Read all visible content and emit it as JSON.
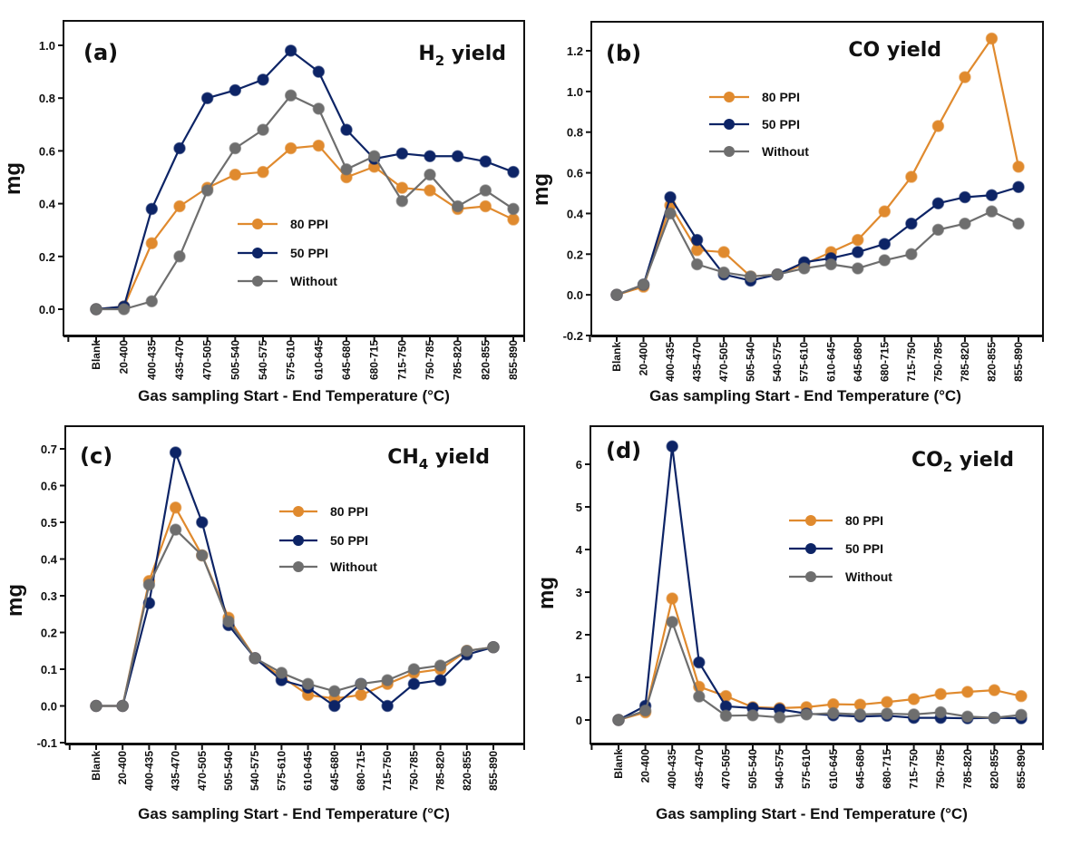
{
  "figure": {
    "xlabel": "Gas sampling Start - End Temperature (°C)",
    "ylabel": "mg"
  },
  "series_style": [
    {
      "name": "80 PPI",
      "color": "#E08A2E"
    },
    {
      "name": "50 PPI",
      "color": "#0D2466"
    },
    {
      "name": "Without",
      "color": "#6E6E6E"
    }
  ],
  "chart_data": [
    {
      "type": "line",
      "panel": "(a)",
      "title": "H2 yield",
      "title_main": "H",
      "title_sub": "2",
      "title_rest": " yield",
      "xlabel": "Gas sampling Start - End Temperature (°C)",
      "ylabel": "mg",
      "ylim": [
        -0.1,
        1.1
      ],
      "yticks": [
        0.0,
        0.2,
        0.4,
        0.6,
        0.8,
        1.0
      ],
      "ytick_labels": [
        "0.0",
        "0.2",
        "0.4",
        "0.6",
        "0.8",
        "1.0"
      ],
      "legend_position": "center",
      "categories": [
        "Blank",
        "20-400",
        "400-435",
        "435-470",
        "470-505",
        "505-540",
        "540-575",
        "575-610",
        "610-645",
        "645-680",
        "680-715",
        "715-750",
        "750-785",
        "785-820",
        "820-855",
        "855-890"
      ],
      "series": [
        {
          "name": "80 PPI",
          "values": [
            0.0,
            0.01,
            0.25,
            0.39,
            0.46,
            0.51,
            0.52,
            0.61,
            0.62,
            0.5,
            0.54,
            0.46,
            0.45,
            0.38,
            0.39,
            0.34
          ]
        },
        {
          "name": "50 PPI",
          "values": [
            0.0,
            0.01,
            0.38,
            0.61,
            0.8,
            0.83,
            0.87,
            0.98,
            0.9,
            0.68,
            0.57,
            0.59,
            0.58,
            0.58,
            0.56,
            0.52
          ]
        },
        {
          "name": "Without",
          "values": [
            0.0,
            0.0,
            0.03,
            0.2,
            0.45,
            0.61,
            0.68,
            0.81,
            0.76,
            0.53,
            0.58,
            0.41,
            0.51,
            0.39,
            0.45,
            0.38
          ]
        }
      ]
    },
    {
      "type": "line",
      "panel": "(b)",
      "title": "CO yield",
      "title_main": "CO yield",
      "title_sub": "",
      "title_rest": "",
      "xlabel": "Gas sampling Start - End Temperature (°C)",
      "ylabel": "mg",
      "ylim": [
        -0.2,
        1.35
      ],
      "yticks": [
        -0.2,
        0.0,
        0.2,
        0.4,
        0.6,
        0.8,
        1.0,
        1.2
      ],
      "ytick_labels": [
        "-0.2",
        "0.0",
        "0.2",
        "0.4",
        "0.6",
        "0.8",
        "1.0",
        "1.2"
      ],
      "legend_position": "top-left",
      "categories": [
        "Blank",
        "20-400",
        "400-435",
        "435-470",
        "470-505",
        "505-540",
        "540-575",
        "575-610",
        "610-645",
        "645-680",
        "680-715",
        "715-750",
        "750-785",
        "785-820",
        "820-855",
        "855-890"
      ],
      "series": [
        {
          "name": "80 PPI",
          "values": [
            0.0,
            0.04,
            0.44,
            0.22,
            0.21,
            0.09,
            0.1,
            0.15,
            0.21,
            0.27,
            0.41,
            0.58,
            0.83,
            1.07,
            1.26,
            0.63
          ]
        },
        {
          "name": "50 PPI",
          "values": [
            0.0,
            0.05,
            0.48,
            0.27,
            0.1,
            0.07,
            0.1,
            0.16,
            0.18,
            0.21,
            0.25,
            0.35,
            0.45,
            0.48,
            0.49,
            0.53
          ]
        },
        {
          "name": "Without",
          "values": [
            0.0,
            0.05,
            0.4,
            0.15,
            0.11,
            0.09,
            0.1,
            0.13,
            0.15,
            0.13,
            0.17,
            0.2,
            0.32,
            0.35,
            0.41,
            0.35
          ]
        }
      ]
    },
    {
      "type": "line",
      "panel": "(c)",
      "title": "CH4 yield",
      "title_main": "CH",
      "title_sub": "4",
      "title_rest": " yield",
      "xlabel": "Gas sampling Start - End Temperature (°C)",
      "ylabel": "mg",
      "ylim": [
        -0.1,
        0.75
      ],
      "yticks": [
        -0.1,
        0.0,
        0.1,
        0.2,
        0.3,
        0.4,
        0.5,
        0.6,
        0.7
      ],
      "ytick_labels": [
        "-0.1",
        "0.0",
        "0.1",
        "0.2",
        "0.3",
        "0.4",
        "0.5",
        "0.6",
        "0.7"
      ],
      "legend_position": "top-right",
      "categories": [
        "Blank",
        "20-400",
        "400-435",
        "435-470",
        "470-505",
        "505-540",
        "540-575",
        "575-610",
        "610-645",
        "645-680",
        "680-715",
        "715-750",
        "750-785",
        "785-820",
        "820-855",
        "855-890"
      ],
      "series": [
        {
          "name": "80 PPI",
          "values": [
            0.0,
            0.0,
            0.34,
            0.54,
            0.41,
            0.24,
            0.13,
            0.08,
            0.03,
            0.02,
            0.03,
            0.06,
            0.09,
            0.1,
            0.15,
            0.16
          ]
        },
        {
          "name": "50 PPI",
          "values": [
            0.0,
            0.0,
            0.28,
            0.69,
            0.5,
            0.22,
            0.13,
            0.07,
            0.05,
            0.0,
            0.06,
            0.0,
            0.06,
            0.07,
            0.14,
            0.16
          ]
        },
        {
          "name": "Without",
          "values": [
            0.0,
            0.0,
            0.33,
            0.48,
            0.41,
            0.23,
            0.13,
            0.09,
            0.06,
            0.04,
            0.06,
            0.07,
            0.1,
            0.11,
            0.15,
            0.16
          ]
        }
      ]
    },
    {
      "type": "line",
      "panel": "(d)",
      "title": "CO2 yield",
      "title_main": "CO",
      "title_sub": "2",
      "title_rest": " yield",
      "xlabel": "Gas sampling Start - End Temperature (°C)",
      "ylabel": "mg",
      "ylim": [
        -0.5,
        6.9
      ],
      "yticks": [
        0,
        1,
        2,
        3,
        4,
        5,
        6
      ],
      "ytick_labels": [
        "0",
        "1",
        "2",
        "3",
        "4",
        "5",
        "6"
      ],
      "legend_position": "top-right",
      "categories": [
        "Blank",
        "20-400",
        "400-435",
        "435-470",
        "470-505",
        "505-540",
        "540-575",
        "575-610",
        "610-645",
        "645-680",
        "680-715",
        "715-750",
        "750-785",
        "785-820",
        "820-855",
        "855-890"
      ],
      "series": [
        {
          "name": "80 PPI",
          "values": [
            0.0,
            0.18,
            2.85,
            0.78,
            0.56,
            0.3,
            0.28,
            0.3,
            0.37,
            0.36,
            0.42,
            0.49,
            0.61,
            0.66,
            0.7,
            0.56
          ]
        },
        {
          "name": "50 PPI",
          "values": [
            0.0,
            0.33,
            6.42,
            1.35,
            0.32,
            0.28,
            0.25,
            0.15,
            0.11,
            0.08,
            0.1,
            0.05,
            0.05,
            0.04,
            0.05,
            0.04
          ]
        },
        {
          "name": "Without",
          "values": [
            0.0,
            0.22,
            2.3,
            0.55,
            0.1,
            0.11,
            0.06,
            0.13,
            0.16,
            0.13,
            0.15,
            0.13,
            0.18,
            0.08,
            0.05,
            0.12
          ]
        }
      ]
    }
  ]
}
